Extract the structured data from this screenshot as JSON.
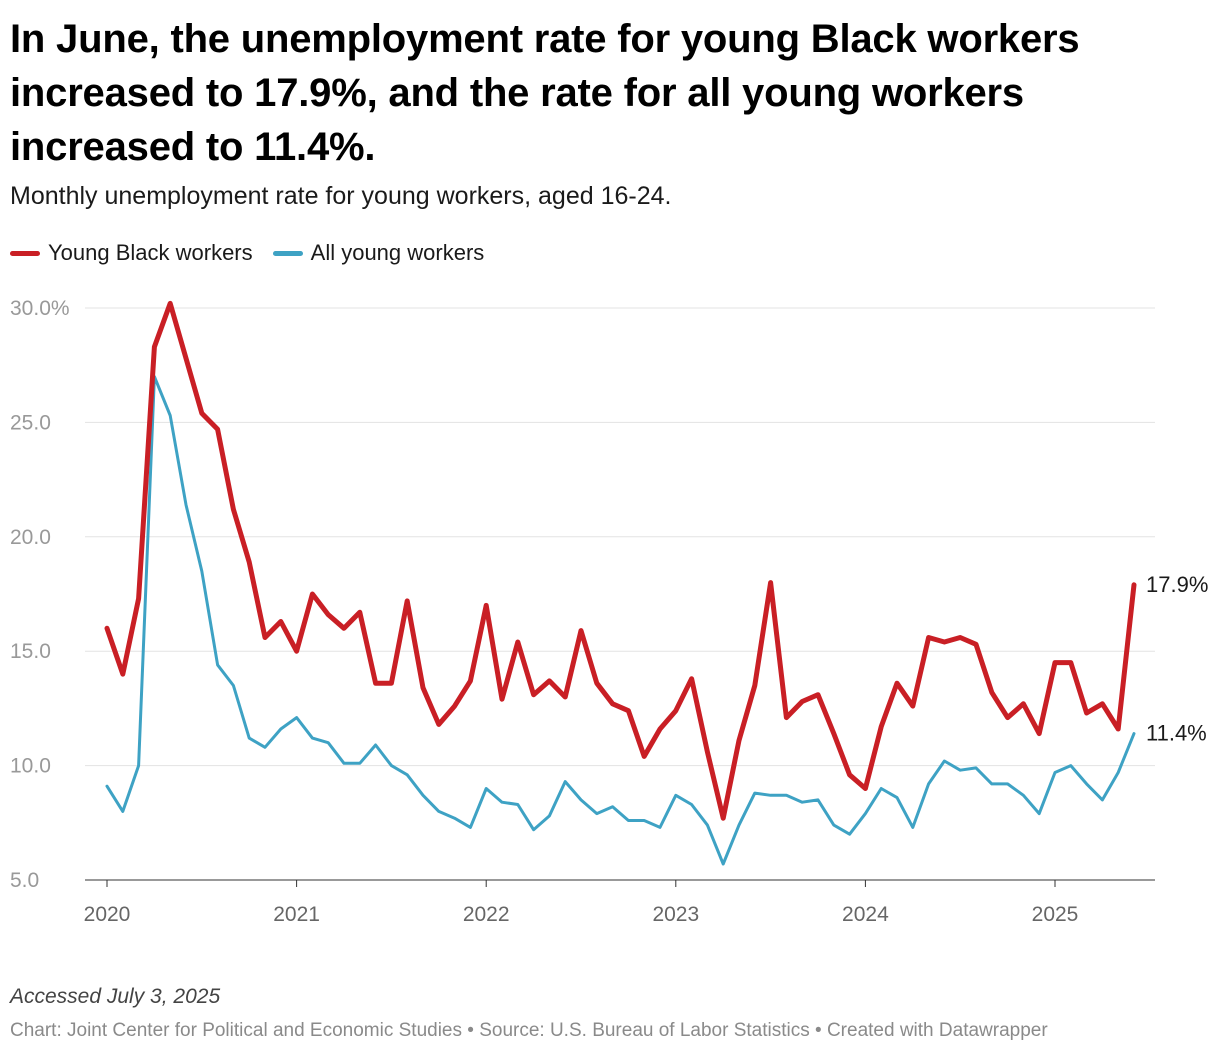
{
  "header": {
    "title": "In June, the unemployment rate for young Black workers increased to 17.9%, and the rate for all young workers increased to 11.4%.",
    "subtitle": "Monthly unemployment rate for young workers, aged 16-24."
  },
  "footer": {
    "notes": "Accessed July 3, 2025",
    "source": "Chart: Joint Center for Political and Economic Studies • Source: U.S. Bureau of Labor Statistics • Created with Datawrapper"
  },
  "chart_data": {
    "type": "line",
    "title": "In June, the unemployment rate for young Black workers increased to 17.9%, and the rate for all young workers increased to 11.4%.",
    "subtitle": "Monthly unemployment rate for young workers, aged 16-24.",
    "xlabel": "",
    "ylabel": "",
    "x_start": "2020-01",
    "x_ticks": [
      "2020",
      "2021",
      "2022",
      "2023",
      "2024",
      "2025"
    ],
    "y_ticks": [
      "5.0",
      "10.0",
      "15.0",
      "20.0",
      "25.0",
      "30.0%"
    ],
    "y_tick_values": [
      5,
      10,
      15,
      20,
      25,
      30
    ],
    "ylim": [
      5,
      30
    ],
    "grid": true,
    "legend_position": "top-left",
    "series": [
      {
        "name": "Young Black workers",
        "color": "#c91f25",
        "end_label": "17.9%",
        "values": [
          16.0,
          14.0,
          17.3,
          28.3,
          30.2,
          27.8,
          25.4,
          24.7,
          21.2,
          18.9,
          15.6,
          16.3,
          15.0,
          17.5,
          16.6,
          16.0,
          16.7,
          13.6,
          13.6,
          17.2,
          13.4,
          11.8,
          12.6,
          13.7,
          17.0,
          12.9,
          15.4,
          13.1,
          13.7,
          13.0,
          15.9,
          13.6,
          12.7,
          12.4,
          10.4,
          11.6,
          12.4,
          13.8,
          10.6,
          7.7,
          11.1,
          13.5,
          18.0,
          12.1,
          12.8,
          13.1,
          11.4,
          9.6,
          9.0,
          11.7,
          13.6,
          12.6,
          15.6,
          15.4,
          15.6,
          15.3,
          13.2,
          12.1,
          12.7,
          11.4,
          14.5,
          14.5,
          12.3,
          12.7,
          11.6,
          17.9
        ]
      },
      {
        "name": "All young workers",
        "color": "#3ea2c4",
        "end_label": "11.4%",
        "values": [
          9.1,
          8.0,
          10.0,
          27.0,
          25.3,
          21.4,
          18.5,
          14.4,
          13.5,
          11.2,
          10.8,
          11.6,
          12.1,
          11.2,
          11.0,
          10.1,
          10.1,
          10.9,
          10.0,
          9.6,
          8.7,
          8.0,
          7.7,
          7.3,
          9.0,
          8.4,
          8.3,
          7.2,
          7.8,
          9.3,
          8.5,
          7.9,
          8.2,
          7.6,
          7.6,
          7.3,
          8.7,
          8.3,
          7.4,
          5.7,
          7.4,
          8.8,
          8.7,
          8.7,
          8.4,
          8.5,
          7.4,
          7.0,
          7.9,
          9.0,
          8.6,
          7.3,
          9.2,
          10.2,
          9.8,
          9.9,
          9.2,
          9.2,
          8.7,
          7.9,
          9.7,
          10.0,
          9.2,
          8.5,
          9.7,
          11.4
        ]
      }
    ]
  }
}
